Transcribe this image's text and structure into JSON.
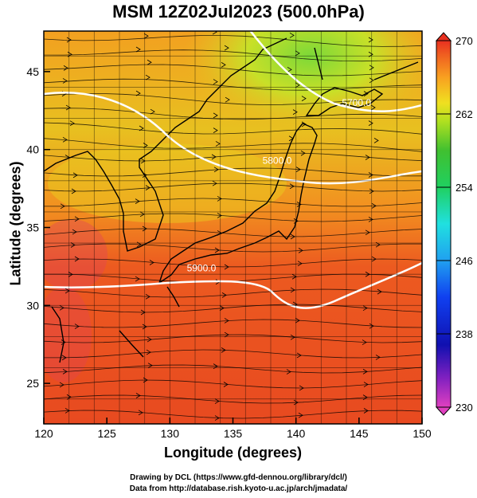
{
  "title": "MSM 12Z02Jul2023 (500.0hPa)",
  "x_axis": {
    "label": "Longitude (degrees)",
    "ticks": [
      {
        "value": 120,
        "label": "120"
      },
      {
        "value": 125,
        "label": "125"
      },
      {
        "value": 130,
        "label": "130"
      },
      {
        "value": 135,
        "label": "135"
      },
      {
        "value": 140,
        "label": "140"
      },
      {
        "value": 145,
        "label": "145"
      },
      {
        "value": 150,
        "label": "150"
      }
    ],
    "range": [
      120,
      150
    ]
  },
  "y_axis": {
    "label": "Latitude  (degrees)",
    "ticks": [
      {
        "value": 25,
        "label": "25"
      },
      {
        "value": 30,
        "label": "30"
      },
      {
        "value": 35,
        "label": "35"
      },
      {
        "value": 40,
        "label": "40"
      },
      {
        "value": 45,
        "label": "45"
      }
    ],
    "range": [
      22.4,
      47.6
    ]
  },
  "colorbar": {
    "ticks": [
      {
        "value": 270,
        "label": "270"
      },
      {
        "value": 262,
        "label": "262"
      },
      {
        "value": 254,
        "label": "254"
      },
      {
        "value": 246,
        "label": "246"
      },
      {
        "value": 238,
        "label": "238"
      },
      {
        "value": 230,
        "label": "230"
      }
    ],
    "range": [
      230,
      270
    ],
    "colors": [
      "#e040c0",
      "#6020c0",
      "#1010b0",
      "#1040f0",
      "#20a0f0",
      "#20e0e0",
      "#20d080",
      "#30c030",
      "#a0e020",
      "#e8e020",
      "#f8b020",
      "#f07020",
      "#e83020"
    ]
  },
  "contours": [
    {
      "label": "5800.0",
      "lon": 138.5,
      "lat": 39.1
    },
    {
      "label": "5900.0",
      "lon": 132.5,
      "lat": 32.2
    },
    {
      "label": "5700.0",
      "lon": 144.8,
      "lat": 42.8
    }
  ],
  "credits": {
    "line1": "Drawing by DCL (https://www.gfd-dennou.org/library/dcl/)",
    "line2": "Data from http://database.rish.kyoto-u.ac.jp/arch/jmadata/"
  }
}
